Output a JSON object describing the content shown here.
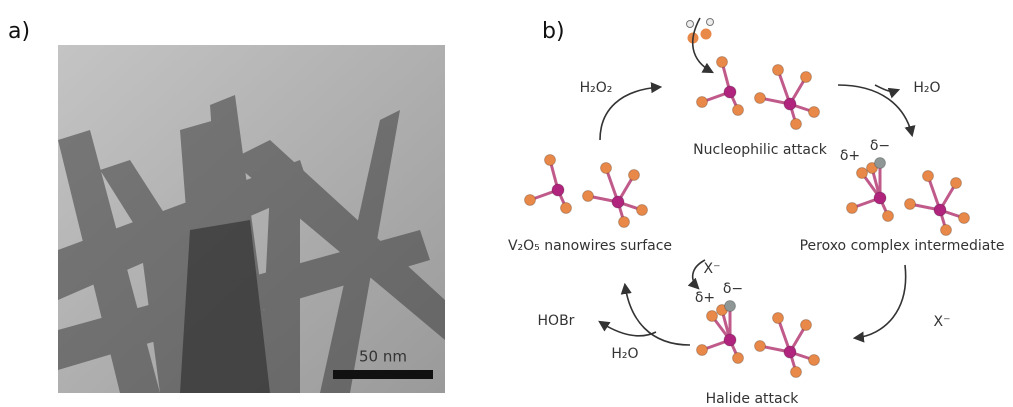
{
  "panel_a": {
    "label": "a)",
    "scale_bar": "50 nm"
  },
  "panel_b": {
    "label": "b)",
    "states": [
      {
        "label": "Nucleophilic attack"
      },
      {
        "label": "Peroxo complex intermediate",
        "charges": [
          "δ+",
          "δ−"
        ]
      },
      {
        "label": "Halide attack",
        "charges": [
          "δ+",
          "δ−"
        ]
      },
      {
        "label": "V₂O₅ nanowires surface"
      }
    ],
    "species": [
      "H₂O₂",
      "H₂O",
      "X⁻",
      "H₂O",
      "HOBr",
      "X⁻"
    ]
  }
}
